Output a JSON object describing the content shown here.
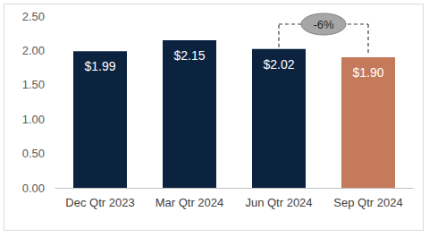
{
  "chart_data": {
    "type": "bar",
    "categories": [
      "Dec Qtr 2023",
      "Mar Qtr 2024",
      "Jun Qtr 2024",
      "Sep Qtr 2024"
    ],
    "values": [
      1.99,
      2.15,
      2.02,
      1.9
    ],
    "value_labels": [
      "$1.99",
      "$2.15",
      "$2.02",
      "$1.90"
    ],
    "colors": [
      "#0c2340",
      "#0c2340",
      "#0c2340",
      "#c47a5b"
    ],
    "ylim": [
      0,
      2.5
    ],
    "yticks": [
      {
        "value": 0,
        "label": "0.00"
      },
      {
        "value": 0.5,
        "label": "0.50"
      },
      {
        "value": 1,
        "label": "1.00"
      },
      {
        "value": 1.5,
        "label": "1.50"
      },
      {
        "value": 2,
        "label": "2.00"
      },
      {
        "value": 2.5,
        "label": "2.50"
      }
    ],
    "grid": false,
    "data_labels": true,
    "annotations": [
      {
        "text": "-6%",
        "from": "Jun Qtr 2024",
        "to": "Sep Qtr 2024"
      }
    ]
  }
}
